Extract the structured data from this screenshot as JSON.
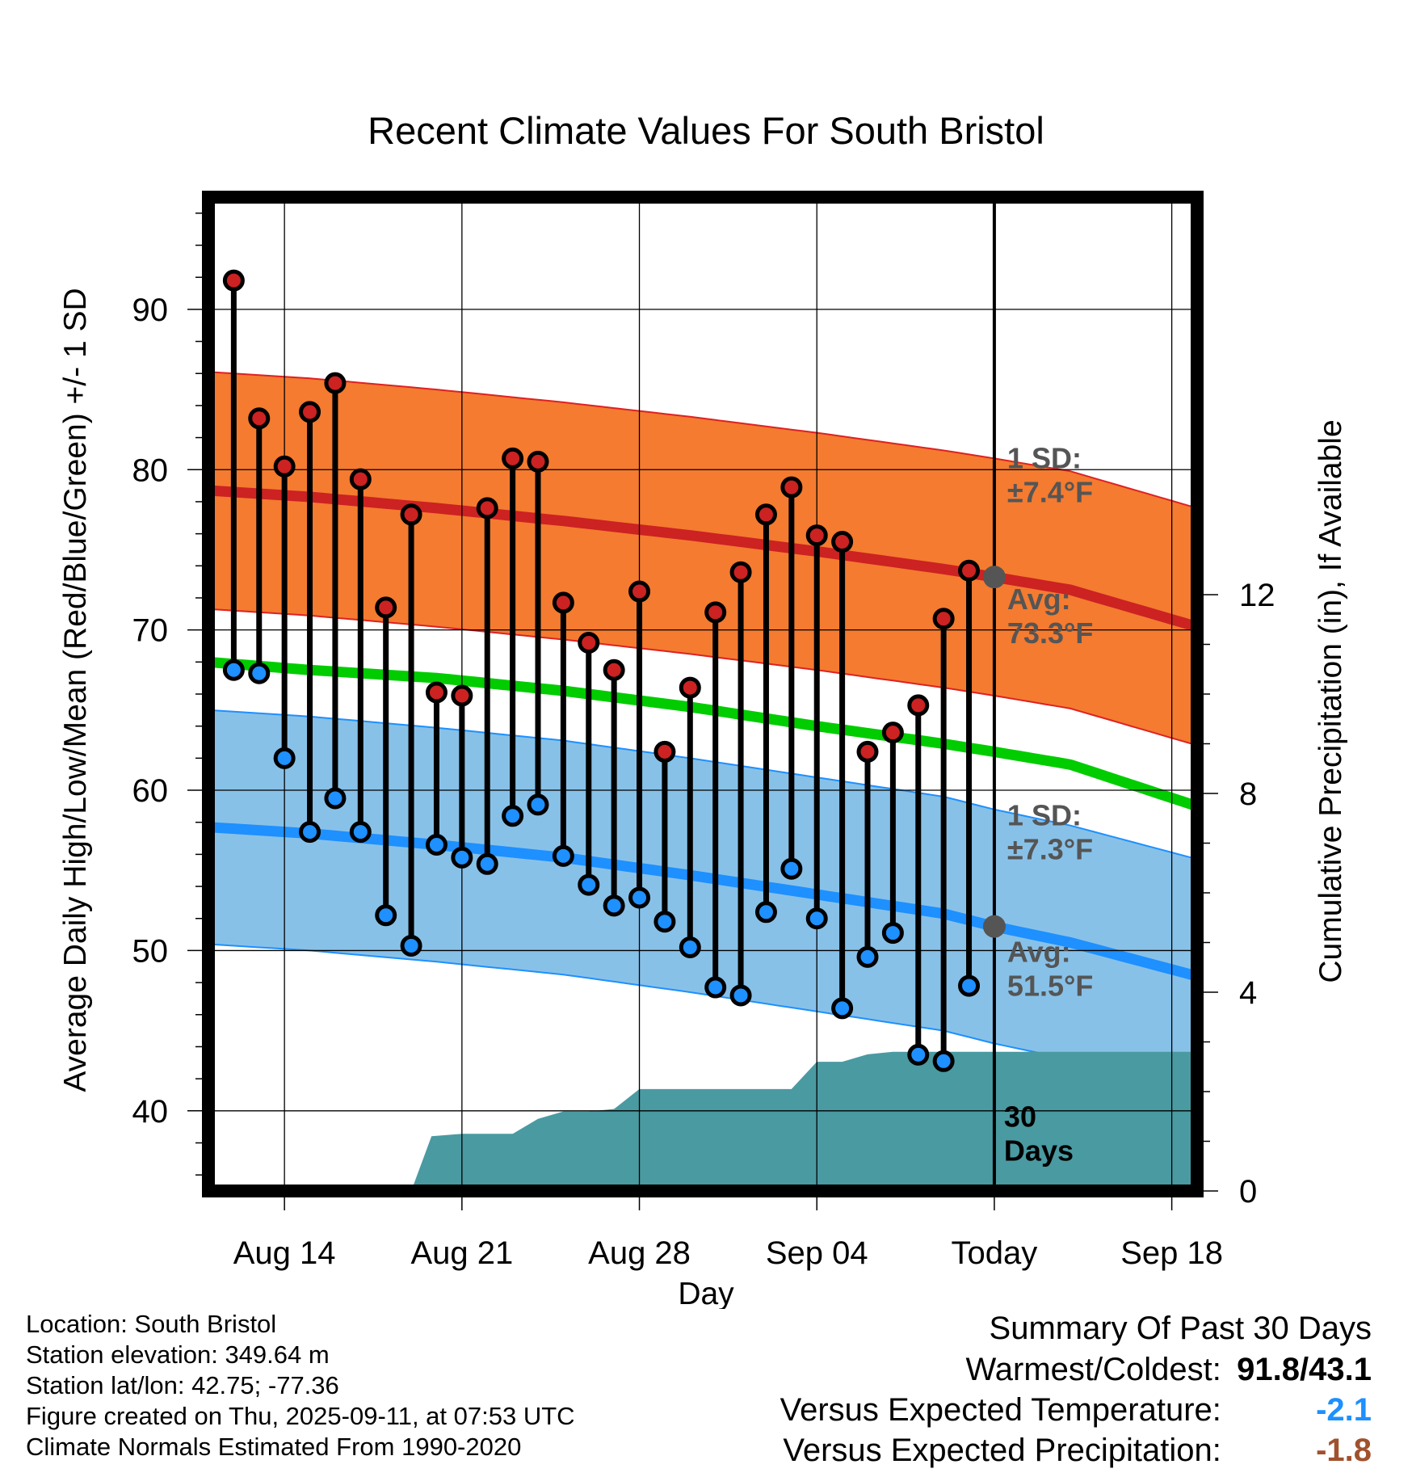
{
  "chart_data": {
    "type": "line",
    "title": "Recent Climate Values For South Bristol",
    "xlabel": "Day",
    "ylabel": "Average Daily High/Low/Mean (Red/Blue/Green) +/- 1 SD",
    "y2label": "Cumulative Precipitation (in), If Available",
    "ylim": [
      35,
      97
    ],
    "y2lim": [
      0,
      20
    ],
    "yticks": [
      40,
      50,
      60,
      70,
      80,
      90
    ],
    "y2ticks": [
      0,
      4,
      8,
      12
    ],
    "x_start": "Aug 11",
    "x_end": "Sep 21",
    "x_tick_labels": [
      {
        "day": 14,
        "label": "Aug 14"
      },
      {
        "day": 21,
        "label": "Aug 21"
      },
      {
        "day": 28,
        "label": "Aug 28"
      },
      {
        "day": 35,
        "label": "Sep 04"
      },
      {
        "day": 42,
        "label": "Today"
      },
      {
        "day": 49,
        "label": "Sep 18"
      }
    ],
    "days": [
      12,
      13,
      14,
      15,
      16,
      17,
      18,
      19,
      20,
      21,
      22,
      23,
      24,
      25,
      26,
      27,
      28,
      29,
      30,
      31,
      32,
      33,
      34,
      35,
      36,
      37,
      38,
      39,
      40,
      41
    ],
    "highs": [
      91.8,
      83.2,
      80.2,
      83.6,
      85.4,
      79.4,
      71.4,
      77.2,
      66.1,
      65.9,
      77.6,
      80.7,
      80.5,
      71.7,
      69.2,
      67.5,
      72.4,
      62.4,
      66.4,
      71.1,
      73.6,
      77.2,
      78.9,
      75.9,
      75.5,
      62.4,
      63.6,
      65.3,
      70.7,
      73.7
    ],
    "lows": [
      67.5,
      67.3,
      62.0,
      57.4,
      59.5,
      57.4,
      52.2,
      50.3,
      56.6,
      55.8,
      55.4,
      58.4,
      59.1,
      55.9,
      54.1,
      52.8,
      53.3,
      51.8,
      50.2,
      47.7,
      47.2,
      52.4,
      55.1,
      52.0,
      46.4,
      49.6,
      51.1,
      43.5,
      43.1,
      47.8
    ],
    "normal_high": {
      "x": [
        11,
        15,
        20,
        25,
        30,
        35,
        40,
        42,
        45,
        50
      ],
      "y": [
        78.7,
        78.3,
        77.6,
        76.8,
        75.9,
        74.9,
        73.8,
        73.3,
        72.5,
        70.2
      ]
    },
    "normal_mean": {
      "x": [
        11,
        15,
        20,
        25,
        30,
        35,
        40,
        42,
        45,
        50
      ],
      "y": [
        68.0,
        67.5,
        67.0,
        66.2,
        65.2,
        64.0,
        62.9,
        62.4,
        61.6,
        59.0
      ]
    },
    "normal_low": {
      "x": [
        11,
        15,
        20,
        25,
        30,
        35,
        40,
        42,
        45,
        50
      ],
      "y": [
        57.7,
        57.3,
        56.6,
        55.8,
        54.7,
        53.5,
        52.3,
        51.5,
        50.5,
        48.4
      ]
    },
    "high_sd": 7.4,
    "low_sd": 7.3,
    "precip_cumulative": {
      "x": [
        11,
        19,
        19.8,
        21,
        22,
        23,
        24,
        25,
        26,
        27,
        28,
        29,
        30,
        31,
        32,
        33,
        34,
        35,
        36,
        37,
        38,
        39,
        40,
        41,
        42,
        50
      ],
      "y": [
        0,
        0,
        1.1,
        1.15,
        1.15,
        1.15,
        1.45,
        1.6,
        1.6,
        1.65,
        2.05,
        2.05,
        2.05,
        2.05,
        2.05,
        2.05,
        2.05,
        2.6,
        2.6,
        2.75,
        2.8,
        2.8,
        2.8,
        2.8,
        2.8,
        2.8
      ]
    },
    "colors": {
      "high": "#cc2222",
      "high_band": "#f47b30",
      "high_band_edge": "#dd2222",
      "mean": "#00cc00",
      "low": "#1e90ff",
      "low_band": "#88c1e8",
      "low_band_edge": "#1e90ff",
      "precip": "#4a9aa2",
      "annotation": "#555555",
      "anomaly_temp": "#1e90ff",
      "anomaly_precip": "#a0522d"
    },
    "annotations": {
      "high_sd_label": [
        "1 SD:",
        "±7.4°F"
      ],
      "high_avg_label": [
        "Avg:",
        "73.3°F"
      ],
      "low_sd_label": [
        "1 SD:",
        "±7.3°F"
      ],
      "low_avg_label": [
        "Avg:",
        "51.5°F"
      ],
      "precip_label": [
        "30",
        "Days"
      ]
    },
    "grid": true
  },
  "info": {
    "location": "Location: South Bristol",
    "elevation": "Station elevation: 349.64 m",
    "latlon": "Station lat/lon: 42.75; -77.36",
    "created": "Figure created on Thu, 2025-09-11, at 07:53 UTC",
    "normals": "Climate Normals Estimated From 1990-2020"
  },
  "summary": {
    "title": "Summary Of Past 30 Days",
    "warmest_label": "Warmest/Coldest:",
    "warmest_value": "91.8/43.1",
    "temp_label": "Versus Expected Temperature:",
    "temp_value": "-2.1",
    "precip_label": "Versus Expected Precipitation:",
    "precip_value": "-1.8"
  }
}
